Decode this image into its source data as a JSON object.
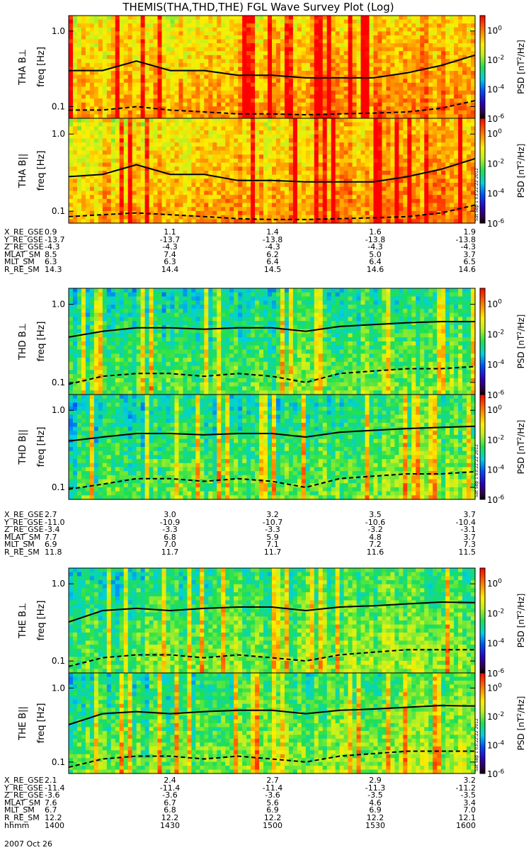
{
  "title": "THEMIS(THA,THD,THE) FGL Wave Survey Plot (Log)",
  "colorbar": {
    "label_prefix": "PSD [nT",
    "label_sup": "2",
    "label_suffix": "/Hz]",
    "ticks": [
      {
        "base": "10",
        "exp": "0",
        "value": 0
      },
      {
        "base": "10",
        "exp": "-2",
        "value": -2
      },
      {
        "base": "10",
        "exp": "-4",
        "value": -4
      },
      {
        "base": "10",
        "exp": "-6",
        "value": -6
      }
    ]
  },
  "stamp": "Sat Sep  1 03:22:22 2012",
  "footer_date": "2007 Oct 26",
  "chart_data": [
    {
      "type": "heatmap",
      "panel": "THA B⊥",
      "probe": "THA",
      "component": "perp",
      "ylabel": "freq [Hz]",
      "yscale": "log",
      "ylim": [
        0.07,
        1.6
      ],
      "yticks": [
        {
          "label": "1.0",
          "value": 1.0
        },
        {
          "label": "0.1",
          "value": 0.1
        }
      ],
      "xlim": [
        "14:00",
        "16:00"
      ],
      "zscale": "log",
      "zlim": [
        1e-06,
        10
      ],
      "series": [
        {
          "name": "",
          "style": "solid",
          "x": [
            "14:00",
            "14:10",
            "14:20",
            "14:30",
            "14:40",
            "14:50",
            "15:00",
            "15:10",
            "15:20",
            "15:30",
            "15:40",
            "15:50",
            "16:00"
          ],
          "y": [
            0.3,
            0.3,
            0.4,
            0.3,
            0.3,
            0.26,
            0.26,
            0.24,
            0.24,
            0.24,
            0.28,
            0.35,
            0.48
          ]
        },
        {
          "name": "",
          "style": "dashed",
          "x": [
            "14:00",
            "14:10",
            "14:20",
            "14:30",
            "14:40",
            "14:50",
            "15:00",
            "15:10",
            "15:20",
            "15:30",
            "15:40",
            "15:50",
            "16:00"
          ],
          "y": [
            0.09,
            0.09,
            0.1,
            0.09,
            0.085,
            0.08,
            0.08,
            0.078,
            0.08,
            0.082,
            0.085,
            0.095,
            0.12
          ]
        }
      ]
    },
    {
      "type": "heatmap",
      "panel": "THA B||",
      "probe": "THA",
      "component": "par",
      "ylabel": "freq [Hz]",
      "yscale": "log",
      "ylim": [
        0.07,
        1.6
      ],
      "yticks": [
        {
          "label": "1.0",
          "value": 1.0
        },
        {
          "label": "0.1",
          "value": 0.1
        }
      ],
      "xlim": [
        "14:00",
        "16:00"
      ],
      "zscale": "log",
      "zlim": [
        1e-06,
        10
      ],
      "series": [
        {
          "name": "",
          "style": "solid",
          "x": [
            "14:00",
            "14:10",
            "14:20",
            "14:30",
            "14:40",
            "14:50",
            "15:00",
            "15:10",
            "15:20",
            "15:30",
            "15:40",
            "15:50",
            "16:00"
          ],
          "y": [
            0.28,
            0.3,
            0.4,
            0.3,
            0.3,
            0.25,
            0.25,
            0.24,
            0.24,
            0.24,
            0.28,
            0.35,
            0.48
          ]
        },
        {
          "name": "",
          "style": "dashed",
          "x": [
            "14:00",
            "14:10",
            "14:20",
            "14:30",
            "14:40",
            "14:50",
            "15:00",
            "15:10",
            "15:20",
            "15:30",
            "15:40",
            "15:50",
            "16:00"
          ],
          "y": [
            0.085,
            0.09,
            0.095,
            0.09,
            0.085,
            0.08,
            0.078,
            0.078,
            0.08,
            0.082,
            0.085,
            0.095,
            0.12
          ]
        }
      ]
    },
    {
      "type": "heatmap",
      "panel": "THD B⊥",
      "probe": "THD",
      "component": "perp",
      "ylabel": "freq [Hz]",
      "yscale": "log",
      "ylim": [
        0.07,
        1.6
      ],
      "yticks": [
        {
          "label": "1.0",
          "value": 1.0
        },
        {
          "label": "0.1",
          "value": 0.1
        }
      ],
      "xlim": [
        "14:00",
        "16:00"
      ],
      "zscale": "log",
      "zlim": [
        1e-06,
        10
      ],
      "series": [
        {
          "name": "",
          "style": "solid",
          "x": [
            "14:00",
            "14:10",
            "14:20",
            "14:30",
            "14:40",
            "14:50",
            "15:00",
            "15:10",
            "15:20",
            "15:30",
            "15:40",
            "15:50",
            "16:00"
          ],
          "y": [
            0.38,
            0.45,
            0.5,
            0.5,
            0.48,
            0.5,
            0.5,
            0.45,
            0.52,
            0.55,
            0.58,
            0.6,
            0.6
          ]
        },
        {
          "name": "",
          "style": "dashed",
          "x": [
            "14:00",
            "14:10",
            "14:20",
            "14:30",
            "14:40",
            "14:50",
            "15:00",
            "15:10",
            "15:20",
            "15:30",
            "15:40",
            "15:50",
            "16:00"
          ],
          "y": [
            0.095,
            0.12,
            0.13,
            0.13,
            0.12,
            0.13,
            0.12,
            0.1,
            0.13,
            0.14,
            0.15,
            0.15,
            0.16
          ]
        }
      ]
    },
    {
      "type": "heatmap",
      "panel": "THD B||",
      "probe": "THD",
      "component": "par",
      "ylabel": "freq [Hz]",
      "yscale": "log",
      "ylim": [
        0.07,
        1.6
      ],
      "yticks": [
        {
          "label": "1.0",
          "value": 1.0
        },
        {
          "label": "0.1",
          "value": 0.1
        }
      ],
      "xlim": [
        "14:00",
        "16:00"
      ],
      "zscale": "log",
      "zlim": [
        1e-06,
        10
      ],
      "series": [
        {
          "name": "",
          "style": "solid",
          "x": [
            "14:00",
            "14:10",
            "14:20",
            "14:30",
            "14:40",
            "14:50",
            "15:00",
            "15:10",
            "15:20",
            "15:30",
            "15:40",
            "15:50",
            "16:00"
          ],
          "y": [
            0.4,
            0.45,
            0.5,
            0.5,
            0.48,
            0.5,
            0.5,
            0.45,
            0.52,
            0.55,
            0.58,
            0.6,
            0.62
          ]
        },
        {
          "name": "",
          "style": "dashed",
          "x": [
            "14:00",
            "14:10",
            "14:20",
            "14:30",
            "14:40",
            "14:50",
            "15:00",
            "15:10",
            "15:20",
            "15:30",
            "15:40",
            "15:50",
            "16:00"
          ],
          "y": [
            0.095,
            0.11,
            0.13,
            0.13,
            0.12,
            0.13,
            0.12,
            0.1,
            0.13,
            0.14,
            0.15,
            0.15,
            0.16
          ]
        }
      ]
    },
    {
      "type": "heatmap",
      "panel": "THE B⊥",
      "probe": "THE",
      "component": "perp",
      "ylabel": "freq [Hz]",
      "yscale": "log",
      "ylim": [
        0.07,
        1.6
      ],
      "yticks": [
        {
          "label": "1.0",
          "value": 1.0
        },
        {
          "label": "0.1",
          "value": 0.1
        }
      ],
      "xlim": [
        "14:00",
        "16:00"
      ],
      "zscale": "log",
      "zlim": [
        1e-06,
        10
      ],
      "series": [
        {
          "name": "",
          "style": "solid",
          "x": [
            "14:00",
            "14:10",
            "14:20",
            "14:30",
            "14:40",
            "14:50",
            "15:00",
            "15:10",
            "15:20",
            "15:30",
            "15:40",
            "15:50",
            "16:00"
          ],
          "y": [
            0.32,
            0.45,
            0.48,
            0.45,
            0.48,
            0.5,
            0.5,
            0.45,
            0.5,
            0.52,
            0.55,
            0.58,
            0.57
          ]
        },
        {
          "name": "",
          "style": "dashed",
          "x": [
            "14:00",
            "14:10",
            "14:20",
            "14:30",
            "14:40",
            "14:50",
            "15:00",
            "15:10",
            "15:20",
            "15:30",
            "15:40",
            "15:50",
            "16:00"
          ],
          "y": [
            0.085,
            0.11,
            0.12,
            0.12,
            0.11,
            0.12,
            0.11,
            0.1,
            0.12,
            0.13,
            0.14,
            0.14,
            0.14
          ]
        }
      ]
    },
    {
      "type": "heatmap",
      "panel": "THE B||",
      "probe": "THE",
      "component": "par",
      "ylabel": "freq [Hz]",
      "yscale": "log",
      "ylim": [
        0.07,
        1.6
      ],
      "yticks": [
        {
          "label": "1.0",
          "value": 1.0
        },
        {
          "label": "0.1",
          "value": 0.1
        }
      ],
      "xlim": [
        "14:00",
        "16:00"
      ],
      "zscale": "log",
      "zlim": [
        1e-06,
        10
      ],
      "series": [
        {
          "name": "",
          "style": "solid",
          "x": [
            "14:00",
            "14:10",
            "14:20",
            "14:30",
            "14:40",
            "14:50",
            "15:00",
            "15:10",
            "15:20",
            "15:30",
            "15:40",
            "15:50",
            "16:00"
          ],
          "y": [
            0.32,
            0.45,
            0.48,
            0.45,
            0.48,
            0.5,
            0.5,
            0.45,
            0.5,
            0.52,
            0.55,
            0.58,
            0.57
          ]
        },
        {
          "name": "",
          "style": "dashed",
          "x": [
            "14:00",
            "14:10",
            "14:20",
            "14:30",
            "14:40",
            "14:50",
            "15:00",
            "15:10",
            "15:20",
            "15:30",
            "15:40",
            "15:50",
            "16:00"
          ],
          "y": [
            0.085,
            0.11,
            0.12,
            0.12,
            0.11,
            0.12,
            0.11,
            0.1,
            0.12,
            0.13,
            0.14,
            0.14,
            0.14
          ]
        }
      ]
    }
  ],
  "ephemeris": [
    {
      "probe": "THA",
      "rows": [
        {
          "label": "X_RE_GSE",
          "values": [
            "0.9",
            "1.1",
            "1.4",
            "1.6",
            "1.9"
          ]
        },
        {
          "label": "Y_RE_GSE",
          "values": [
            "-13.7",
            "-13.7",
            "-13.8",
            "-13.8",
            "-13.8"
          ]
        },
        {
          "label": "Z_RE_GSE",
          "values": [
            "-4.3",
            "-4.3",
            "-4.3",
            "-4.3",
            "-4.3"
          ]
        },
        {
          "label": "MLAT_SM",
          "values": [
            "8.5",
            "7.4",
            "6.2",
            "5.0",
            "3.7"
          ]
        },
        {
          "label": "MLT_SM",
          "values": [
            "6.3",
            "6.3",
            "6.4",
            "6.4",
            "6.5"
          ]
        },
        {
          "label": "R_RE_SM",
          "values": [
            "14.3",
            "14.4",
            "14.5",
            "14.6",
            "14.6"
          ]
        }
      ]
    },
    {
      "probe": "THD",
      "rows": [
        {
          "label": "X_RE_GSE",
          "values": [
            "2.7",
            "3.0",
            "3.2",
            "3.5",
            "3.7"
          ]
        },
        {
          "label": "Y_RE_GSE",
          "values": [
            "-11.0",
            "-10.9",
            "-10.7",
            "-10.6",
            "-10.4"
          ]
        },
        {
          "label": "Z_RE_GSE",
          "values": [
            "-3.4",
            "-3.3",
            "-3.3",
            "-3.2",
            "-3.1"
          ]
        },
        {
          "label": "MLAT_SM",
          "values": [
            "7.7",
            "6.8",
            "5.9",
            "4.8",
            "3.7"
          ]
        },
        {
          "label": "MLT_SM",
          "values": [
            "6.9",
            "7.0",
            "7.1",
            "7.2",
            "7.3"
          ]
        },
        {
          "label": "R_RE_SM",
          "values": [
            "11.8",
            "11.7",
            "11.7",
            "11.6",
            "11.5"
          ]
        }
      ]
    },
    {
      "probe": "THE",
      "rows": [
        {
          "label": "X_RE_GSE",
          "values": [
            "2.1",
            "2.4",
            "2.7",
            "2.9",
            "3.2"
          ]
        },
        {
          "label": "Y_RE_GSE",
          "values": [
            "-11.4",
            "-11.4",
            "-11.4",
            "-11.3",
            "-11.2"
          ]
        },
        {
          "label": "Z_RE_GSE",
          "values": [
            "-3.6",
            "-3.6",
            "-3.6",
            "-3.5",
            "-3.5"
          ]
        },
        {
          "label": "MLAT_SM",
          "values": [
            "7.6",
            "6.7",
            "5.6",
            "4.6",
            "3.4"
          ]
        },
        {
          "label": "MLT_SM",
          "values": [
            "6.7",
            "6.8",
            "6.9",
            "6.9",
            "7.0"
          ]
        },
        {
          "label": "R_RE_SM",
          "values": [
            "12.2",
            "12.2",
            "12.2",
            "12.2",
            "12.1"
          ]
        },
        {
          "label": "hhmm",
          "values": [
            "1400",
            "1430",
            "1500",
            "1530",
            "1600"
          ]
        }
      ]
    }
  ],
  "colors": {
    "axis": "#000000",
    "curve": "#000000",
    "background": "#ffffff"
  }
}
